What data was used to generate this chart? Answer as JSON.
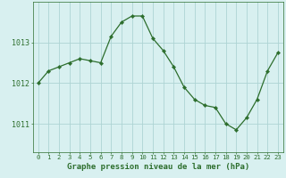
{
  "hours": [
    0,
    1,
    2,
    3,
    4,
    5,
    6,
    7,
    8,
    9,
    10,
    11,
    12,
    13,
    14,
    15,
    16,
    17,
    18,
    19,
    20,
    21,
    22,
    23
  ],
  "pressure": [
    1012.0,
    1012.3,
    1012.4,
    1012.5,
    1012.6,
    1012.55,
    1012.5,
    1013.15,
    1013.5,
    1013.65,
    1013.65,
    1013.1,
    1012.8,
    1012.4,
    1011.9,
    1011.6,
    1011.45,
    1011.4,
    1011.0,
    1010.85,
    1011.15,
    1011.6,
    1012.3,
    1012.75
  ],
  "line_color": "#2d6e2d",
  "marker": "D",
  "marker_size": 2.2,
  "bg_color": "#d8f0f0",
  "grid_color": "#aed4d4",
  "xlabel": "Graphe pression niveau de la mer (hPa)",
  "xlabel_fontsize": 6.5,
  "ylabel_ticks": [
    1011,
    1012,
    1013
  ],
  "ylim": [
    1010.3,
    1014.0
  ],
  "xlim": [
    -0.5,
    23.5
  ],
  "xtick_fontsize": 5.2,
  "ytick_fontsize": 6.0
}
